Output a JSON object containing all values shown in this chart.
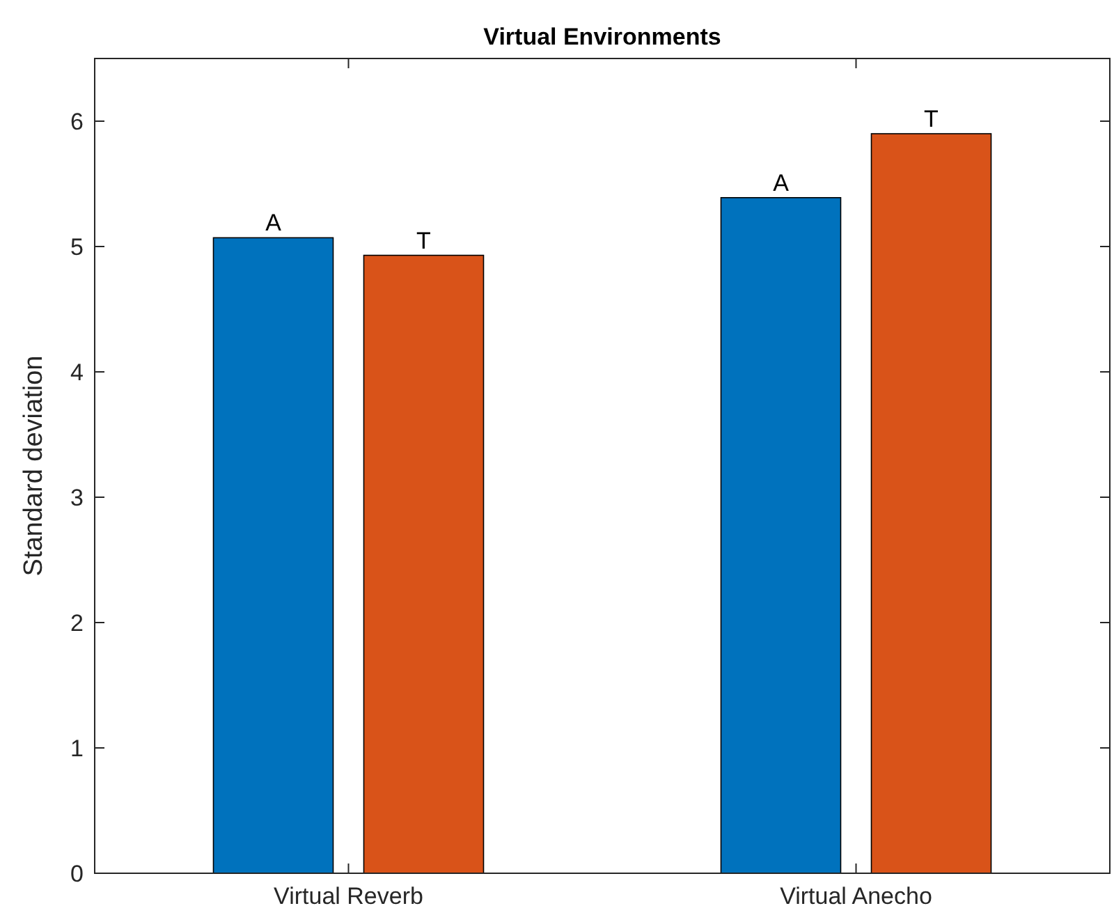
{
  "chart_data": {
    "type": "bar",
    "title": "Virtual Environments",
    "ylabel": "Standard deviation",
    "categories": [
      "Virtual Reverb",
      "Virtual Anecho"
    ],
    "series": [
      {
        "name": "A",
        "color": "#0072bd",
        "values": [
          5.07,
          5.39
        ]
      },
      {
        "name": "T",
        "color": "#d95319",
        "values": [
          4.93,
          5.9
        ]
      }
    ],
    "ylim": [
      0,
      6.5
    ],
    "yticks": [
      0,
      1,
      2,
      3,
      4,
      5,
      6
    ],
    "grid": false
  }
}
